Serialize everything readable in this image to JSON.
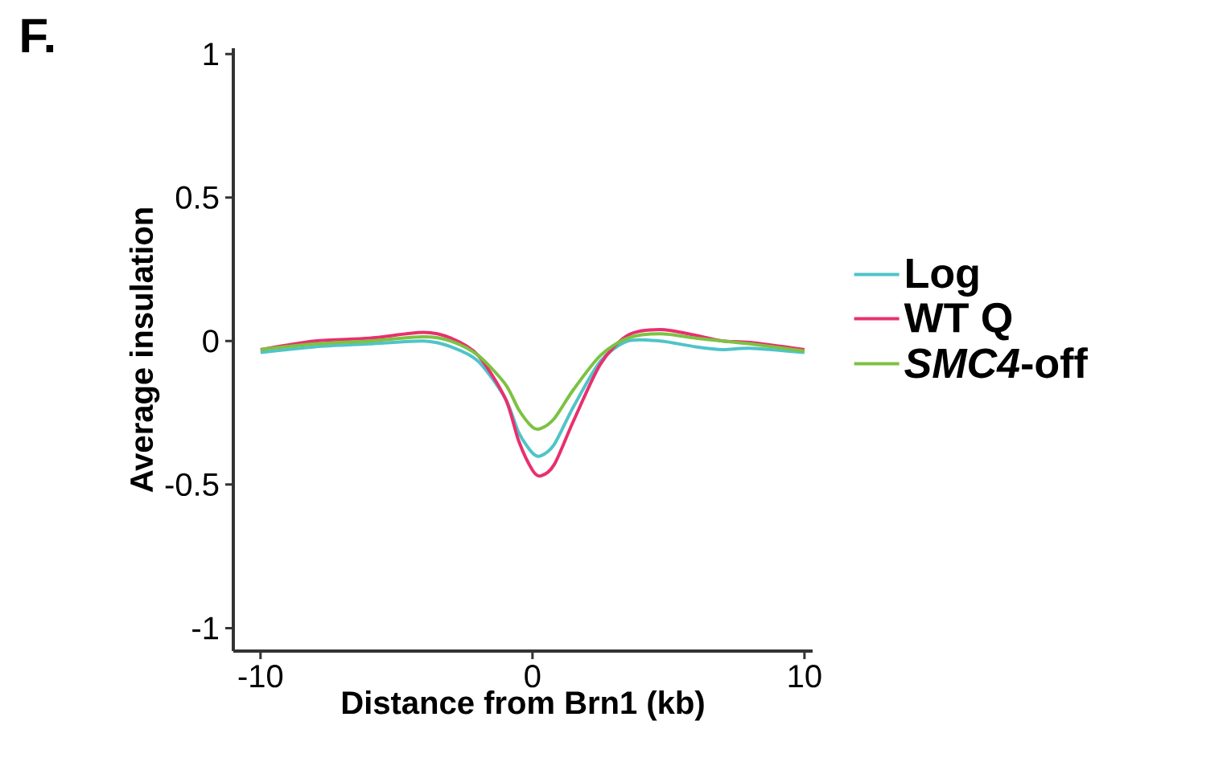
{
  "chart_data": {
    "type": "line",
    "title": "F.",
    "xlabel": "Distance from Brn1 (kb)",
    "ylabel": "Average insulation",
    "xlim": [
      -11,
      10.3
    ],
    "ylim": [
      -1.08,
      1.02
    ],
    "xticks": [
      -10,
      0,
      10
    ],
    "yticks": [
      {
        "value": -1,
        "label": "-1"
      },
      {
        "value": -0.5,
        "label": "-0.5"
      },
      0,
      0.5,
      1
    ],
    "grid": false,
    "legend": "right",
    "marker": "none",
    "line_style": "solid",
    "x": [
      -10,
      -8,
      -6,
      -4,
      -3,
      -2,
      -1,
      -0.5,
      0,
      0.3,
      0.8,
      1.5,
      2.5,
      3.5,
      4.7,
      6,
      7,
      8,
      10
    ],
    "series": [
      {
        "name": "Log",
        "color": "#4fc4c8",
        "values": [
          -0.04,
          -0.02,
          -0.01,
          0.0,
          -0.02,
          -0.07,
          -0.2,
          -0.32,
          -0.39,
          -0.4,
          -0.36,
          -0.23,
          -0.07,
          0.0,
          0.0,
          -0.02,
          -0.03,
          -0.025,
          -0.04
        ]
      },
      {
        "name": "WT Q",
        "color": "#e8306e",
        "values": [
          -0.03,
          0.0,
          0.01,
          0.03,
          0.01,
          -0.05,
          -0.2,
          -0.35,
          -0.45,
          -0.47,
          -0.43,
          -0.28,
          -0.08,
          0.02,
          0.04,
          0.02,
          0.0,
          -0.005,
          -0.03
        ]
      },
      {
        "name": "*SMC4*-off",
        "color": "#7cc242",
        "values": [
          -0.03,
          -0.01,
          0.0,
          0.015,
          0.0,
          -0.05,
          -0.15,
          -0.24,
          -0.3,
          -0.305,
          -0.27,
          -0.17,
          -0.05,
          0.01,
          0.025,
          0.01,
          0.0,
          -0.01,
          -0.035
        ]
      }
    ]
  }
}
